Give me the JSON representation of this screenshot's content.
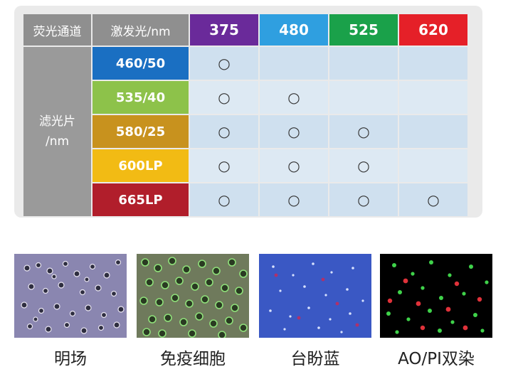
{
  "table": {
    "channel_label": "荧光通道",
    "excitation_label": "激发光/nm",
    "filter_label_line1": "滤光片",
    "filter_label_line2": "/nm",
    "excitations": [
      {
        "label": "375",
        "color": "#6a2a9a"
      },
      {
        "label": "480",
        "color": "#2f9fe0"
      },
      {
        "label": "525",
        "color": "#1aa14a"
      },
      {
        "label": "620",
        "color": "#e52028"
      }
    ],
    "filters": [
      {
        "label": "460/50",
        "color": "#1a6fc2",
        "marks": [
          "○",
          "",
          "",
          ""
        ]
      },
      {
        "label": "535/40",
        "color": "#8dc24a",
        "marks": [
          "○",
          "○",
          "",
          ""
        ]
      },
      {
        "label": "580/25",
        "color": "#c8921e",
        "marks": [
          "○",
          "○",
          "○",
          ""
        ]
      },
      {
        "label": "600LP",
        "color": "#f2bb14",
        "marks": [
          "○",
          "○",
          "○",
          ""
        ]
      },
      {
        "label": "665LP",
        "color": "#b11e2b",
        "marks": [
          "○",
          "○",
          "○",
          "○"
        ]
      }
    ]
  },
  "images": [
    {
      "caption": "明场"
    },
    {
      "caption": "免疫细胞"
    },
    {
      "caption": "台盼蓝"
    },
    {
      "caption": "AO/PI双染"
    }
  ]
}
